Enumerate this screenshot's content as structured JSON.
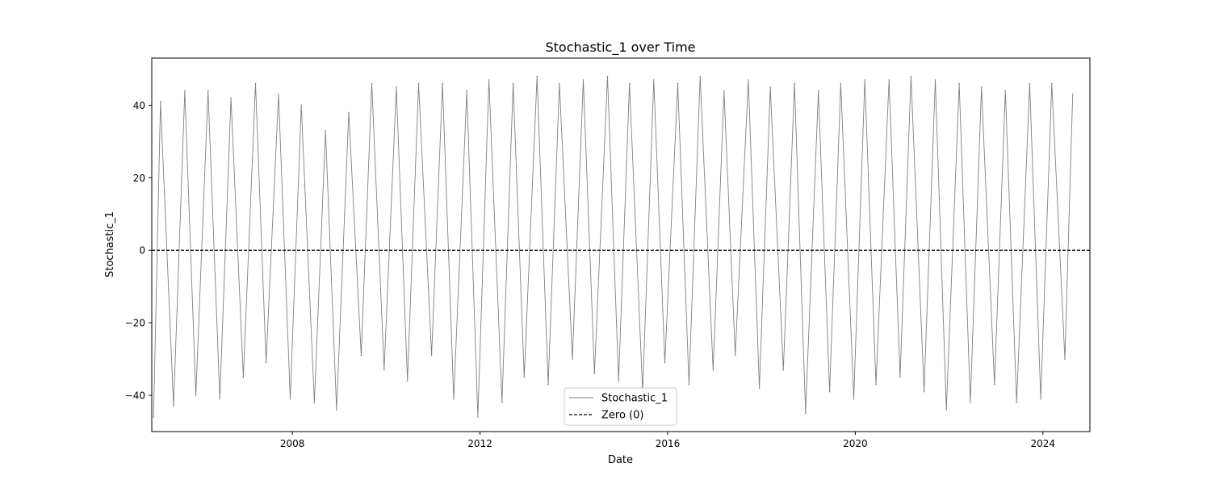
{
  "chart_data": {
    "type": "line",
    "title": "Stochastic_1 over Time",
    "xlabel": "Date",
    "ylabel": "Stochastic_1",
    "x_range": [
      "2005-01-01",
      "2025-01-01"
    ],
    "x_ticks": [
      "2008",
      "2012",
      "2016",
      "2020",
      "2024"
    ],
    "ylim": [
      -50,
      53
    ],
    "y_ticks": [
      -40,
      -20,
      0,
      20,
      40
    ],
    "y_tick_labels": [
      "−40",
      "−20",
      "0",
      "20",
      "40"
    ],
    "grid": false,
    "legend_position": "bottom-center",
    "series": [
      {
        "name": "Stochastic_1",
        "color": "#808080",
        "style": "solid",
        "x": [
          "2005-01-15",
          "2005-03-10",
          "2005-06-20",
          "2005-09-15",
          "2005-12-10",
          "2006-03-15",
          "2006-06-15",
          "2006-09-10",
          "2006-12-15",
          "2007-03-20",
          "2007-06-10",
          "2007-09-15",
          "2007-12-15",
          "2008-03-10",
          "2008-06-20",
          "2008-09-15",
          "2008-12-10",
          "2009-03-15",
          "2009-06-20",
          "2009-09-10",
          "2009-12-15",
          "2010-03-20",
          "2010-06-15",
          "2010-09-10",
          "2010-12-20",
          "2011-03-15",
          "2011-06-10",
          "2011-09-20",
          "2011-12-15",
          "2012-03-10",
          "2012-06-20",
          "2012-09-15",
          "2012-12-10",
          "2013-03-20",
          "2013-06-15",
          "2013-09-10",
          "2013-12-20",
          "2014-03-15",
          "2014-06-10",
          "2014-09-20",
          "2014-12-15",
          "2015-03-10",
          "2015-06-20",
          "2015-09-15",
          "2015-12-10",
          "2016-03-20",
          "2016-06-15",
          "2016-09-10",
          "2016-12-20",
          "2017-03-15",
          "2017-06-10",
          "2017-09-20",
          "2017-12-15",
          "2018-03-10",
          "2018-06-20",
          "2018-09-15",
          "2018-12-10",
          "2019-03-20",
          "2019-06-15",
          "2019-09-10",
          "2019-12-20",
          "2020-03-15",
          "2020-06-10",
          "2020-09-20",
          "2020-12-15",
          "2021-03-10",
          "2021-06-20",
          "2021-09-15",
          "2021-12-10",
          "2022-03-20",
          "2022-06-15",
          "2022-09-10",
          "2022-12-20",
          "2023-03-15",
          "2023-06-10",
          "2023-09-20",
          "2023-12-15",
          "2024-03-10",
          "2024-06-20",
          "2024-08-20"
        ],
        "values": [
          -46,
          41,
          -43,
          44,
          -40,
          44,
          -41,
          42,
          -35,
          46,
          -31,
          43,
          -41,
          40,
          -42,
          33,
          -44,
          38,
          -29,
          46,
          -33,
          45,
          -36,
          46,
          -29,
          46,
          -41,
          44,
          -46,
          47,
          -42,
          46,
          -35,
          48,
          -37,
          46,
          -30,
          47,
          -34,
          48,
          -36,
          46,
          -39,
          47,
          -31,
          46,
          -37,
          48,
          -33,
          44,
          -29,
          47,
          -38,
          45,
          -33,
          46,
          -45,
          44,
          -39,
          46,
          -41,
          47,
          -37,
          47,
          -35,
          48,
          -39,
          47,
          -44,
          46,
          -42,
          45,
          -37,
          44,
          -42,
          46,
          -41,
          46,
          -30,
          43
        ]
      },
      {
        "name": "Zero (0)",
        "color": "#000000",
        "style": "dashed",
        "y_constant": 0
      }
    ]
  }
}
